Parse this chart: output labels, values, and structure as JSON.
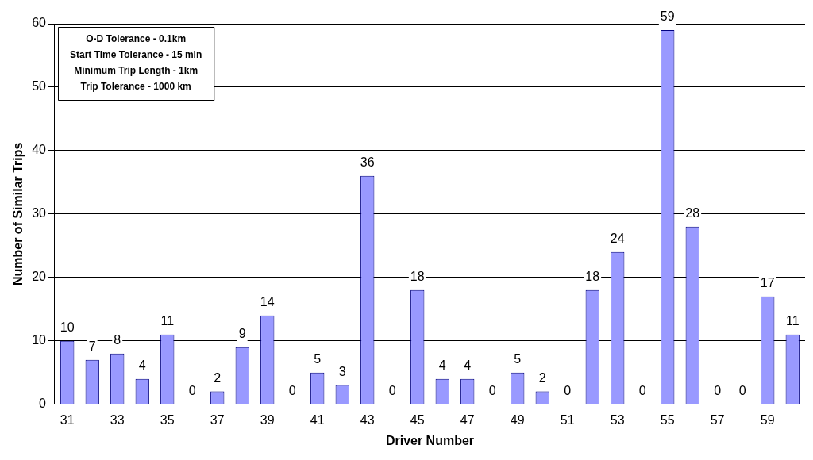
{
  "chart_data": {
    "type": "bar",
    "xlabel": "Driver Number",
    "ylabel": "Number of Similar Trips",
    "categories": [
      "31",
      null,
      "33",
      null,
      "35",
      null,
      "37",
      null,
      "39",
      null,
      "41",
      null,
      "43",
      null,
      "45",
      null,
      "47",
      null,
      "49",
      null,
      "51",
      null,
      "53",
      null,
      "55",
      null,
      "57",
      null,
      "59",
      null
    ],
    "values": [
      10,
      7,
      8,
      4,
      11,
      0,
      2,
      9,
      14,
      0,
      5,
      3,
      36,
      0,
      18,
      4,
      4,
      0,
      5,
      2,
      0,
      18,
      24,
      0,
      59,
      28,
      0,
      0,
      17,
      11
    ],
    "color": "#9999ff",
    "ylim": [
      0,
      60
    ],
    "yticks": [
      0,
      10,
      20,
      30,
      40,
      50,
      60
    ],
    "grid": "y",
    "legend": false,
    "data_labels": true,
    "annotations": [
      "O-D Tolerance - 0.1km",
      "Start Time Tolerance - 15 min",
      "Minimum Trip Length - 1km",
      "Trip Tolerance - 1000 km"
    ]
  }
}
